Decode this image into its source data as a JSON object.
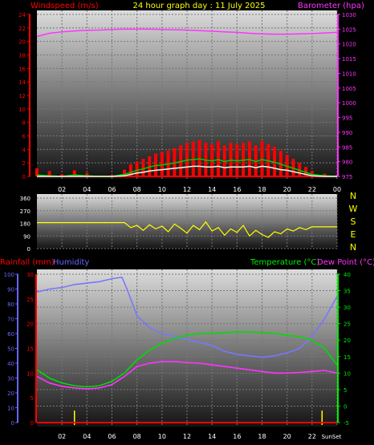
{
  "header": {
    "windspeed_label": "Windspeed (m/s)",
    "title": "24 hour graph day : 11 July 2025",
    "barometer_label": "Barometer (hpa)"
  },
  "footer": {
    "rainfall_label": "Rainfall (mm)",
    "humidity_label": "Humidity",
    "temperature_label": "Temperature (°C)",
    "dewpoint_label": "Dew Point (°C)",
    "sun_label": "SunSet"
  },
  "colors": {
    "wind_gust": "#ff0000",
    "wind_avg": "#00cc00",
    "wind_light": "#e6ffe6",
    "barometer": "#ff33ff",
    "direction": "#ffff00",
    "humidity": "#7777ff",
    "temperature": "#00dd00",
    "dewpoint": "#ff33ff",
    "rain": "#ff0000",
    "axis_label_red": "#ff0000",
    "axis_label_blue": "#6666ff",
    "axis_label_green": "#00ee00",
    "axis_label_magenta": "#ff33ff",
    "direction_labels": "#ffff00"
  },
  "chart_data": [
    {
      "type": "area",
      "title": "24 hour graph day : 11 July 2025",
      "x_ticks": [
        "02",
        "04",
        "06",
        "08",
        "10",
        "12",
        "14",
        "16",
        "18",
        "20",
        "22",
        "00"
      ],
      "xlim": [
        0,
        24
      ],
      "left_axis": {
        "label": "Windspeed (m/s)",
        "ylim": [
          0,
          24
        ],
        "ticks": [
          "0",
          "2",
          "4",
          "6",
          "8",
          "10",
          "12",
          "14",
          "16",
          "18",
          "20",
          "22",
          "24"
        ]
      },
      "right_axis": {
        "label": "Barometer (hpa)",
        "ylim": [
          975,
          1030
        ],
        "ticks": [
          "975",
          "980",
          "985",
          "990",
          "995",
          "1000",
          "1005",
          "1010",
          "1015",
          "1020",
          "1025",
          "1030"
        ]
      },
      "grid": true,
      "series": [
        {
          "name": "Barometer (hpa)",
          "axis": "right",
          "type": "line",
          "x": [
            0,
            1,
            2,
            3,
            4,
            5,
            6,
            7,
            8,
            9,
            10,
            11,
            12,
            13,
            14,
            15,
            16,
            17,
            18,
            19,
            20,
            21,
            22,
            23,
            24
          ],
          "values": [
            1022.5,
            1023.6,
            1024.1,
            1024.4,
            1024.6,
            1024.7,
            1024.9,
            1025.0,
            1025.0,
            1025.0,
            1024.9,
            1024.8,
            1024.7,
            1024.5,
            1024.3,
            1024.1,
            1023.9,
            1023.6,
            1023.4,
            1023.3,
            1023.3,
            1023.4,
            1023.5,
            1023.7,
            1023.9
          ]
        },
        {
          "axis": "left",
          "type": "bar",
          "x": [
            0,
            1,
            2,
            3,
            4,
            5,
            6,
            7,
            7.5,
            8,
            8.5,
            9,
            9.5,
            10,
            10.5,
            11,
            11.5,
            12,
            12.5,
            13,
            13.5,
            14,
            14.5,
            15,
            15.5,
            16,
            16.5,
            17,
            17.5,
            18,
            18.5,
            19,
            19.5,
            20,
            20.5,
            21,
            21.5,
            22,
            23,
            24
          ],
          "values": [
            1.2,
            0.8,
            0.3,
            0.9,
            0.5,
            0,
            0.2,
            1.0,
            1.8,
            2.2,
            2.6,
            3.0,
            3.4,
            3.6,
            3.8,
            4.2,
            4.6,
            5.0,
            5.2,
            5.4,
            5.0,
            4.8,
            5.2,
            4.6,
            5.0,
            4.8,
            5.0,
            5.2,
            4.6,
            5.2,
            4.8,
            4.4,
            3.8,
            3.2,
            2.6,
            2.0,
            1.4,
            0.8,
            0.4,
            0.2
          ]
        },
        {
          "axis": "left",
          "type": "line",
          "x": [
            0,
            1,
            2,
            3,
            4,
            5,
            6,
            7,
            7.5,
            8,
            8.5,
            9,
            9.5,
            10,
            10.5,
            11,
            11.5,
            12,
            12.5,
            13,
            13.5,
            14,
            14.5,
            15,
            15.5,
            16,
            16.5,
            17,
            17.5,
            18,
            18.5,
            19,
            19.5,
            20,
            20.5,
            21,
            21.5,
            22,
            23,
            24
          ],
          "values": [
            0.2,
            0.1,
            0,
            0.2,
            0.1,
            0,
            0,
            0.3,
            0.6,
            0.9,
            1.1,
            1.4,
            1.6,
            1.7,
            1.8,
            2.0,
            2.2,
            2.4,
            2.5,
            2.6,
            2.4,
            2.3,
            2.5,
            2.2,
            2.4,
            2.3,
            2.4,
            2.5,
            2.2,
            2.5,
            2.3,
            2.1,
            1.8,
            1.5,
            1.2,
            0.9,
            0.6,
            0.3,
            0.1,
            0
          ]
        },
        {
          "axis": "left",
          "type": "line",
          "x": [
            0,
            1,
            2,
            3,
            4,
            5,
            6,
            7,
            7.5,
            8,
            8.5,
            9,
            9.5,
            10,
            10.5,
            11,
            11.5,
            12,
            12.5,
            13,
            13.5,
            14,
            14.5,
            15,
            15.5,
            16,
            16.5,
            17,
            17.5,
            18,
            18.5,
            19,
            19.5,
            20,
            20.5,
            21,
            21.5,
            22,
            23,
            24
          ],
          "values": [
            0,
            0,
            0,
            0,
            0,
            0,
            0,
            0.1,
            0.3,
            0.5,
            0.6,
            0.8,
            0.9,
            1.0,
            1.1,
            1.2,
            1.3,
            1.4,
            1.5,
            1.5,
            1.4,
            1.4,
            1.5,
            1.3,
            1.4,
            1.4,
            1.4,
            1.5,
            1.3,
            1.5,
            1.4,
            1.2,
            1.0,
            0.9,
            0.7,
            0.5,
            0.3,
            0.1,
            0,
            0
          ]
        }
      ]
    },
    {
      "type": "line",
      "x_ticks": [],
      "xlim": [
        0,
        24
      ],
      "left_axis": {
        "ylim": [
          0,
          360
        ],
        "ticks": [
          "0",
          "90",
          "180",
          "270",
          "360"
        ]
      },
      "direction_labels": [
        "N",
        "W",
        "S",
        "E",
        "N"
      ],
      "grid": true,
      "series": [
        {
          "axis": "left",
          "x": [
            0,
            1,
            2,
            3,
            4,
            5,
            6,
            7,
            7.5,
            8,
            8.5,
            9,
            9.5,
            10,
            10.5,
            11,
            11.5,
            12,
            12.5,
            13,
            13.5,
            14,
            14.5,
            15,
            15.5,
            16,
            16.5,
            17,
            17.5,
            18,
            18.5,
            19,
            19.5,
            20,
            20.5,
            21,
            21.5,
            22,
            23,
            24
          ],
          "values": [
            185,
            185,
            185,
            185,
            185,
            185,
            185,
            185,
            150,
            165,
            130,
            170,
            140,
            160,
            120,
            175,
            145,
            110,
            165,
            135,
            190,
            125,
            150,
            95,
            140,
            115,
            165,
            90,
            130,
            100,
            80,
            120,
            105,
            140,
            125,
            150,
            135,
            155,
            155,
            155
          ]
        }
      ]
    },
    {
      "type": "line",
      "x_ticks": [
        "02",
        "04",
        "06",
        "08",
        "10",
        "12",
        "14",
        "16",
        "18",
        "20",
        "22",
        "Sun"
      ],
      "xlim": [
        0,
        24
      ],
      "left_axis_rain": {
        "label": "Rainfall (mm)",
        "ylim": [
          0,
          100
        ],
        "ticks": [
          "0",
          "10",
          "20",
          "30",
          "40",
          "50",
          "60",
          "70",
          "80",
          "90",
          "100"
        ]
      },
      "left_axis_humidity": {
        "label": "Humidity",
        "ylim": [
          0,
          30
        ],
        "ticks": [
          "0",
          "5",
          "10",
          "15",
          "20",
          "25",
          "30"
        ]
      },
      "right_axis": {
        "label": "Temperature (°C) / Dew Point (°C)",
        "ylim": [
          -5,
          40
        ],
        "ticks": [
          "-5",
          "0",
          "5",
          "10",
          "15",
          "20",
          "25",
          "30",
          "35",
          "40"
        ]
      },
      "grid": true,
      "series": [
        {
          "name": "Humidity",
          "axis": "rain",
          "x": [
            0,
            1,
            2,
            3,
            4,
            5,
            6,
            6.8,
            7.2,
            8,
            9,
            10,
            11,
            12,
            13,
            14,
            15,
            16,
            17,
            18,
            19,
            20,
            21,
            22,
            23,
            24
          ],
          "values": [
            88,
            90,
            91,
            93,
            94,
            95,
            97,
            98,
            90,
            72,
            64,
            60,
            58,
            56,
            54,
            52,
            48,
            46,
            45,
            44,
            45,
            47,
            50,
            58,
            70,
            85
          ]
        },
        {
          "name": "Temperature (°C)",
          "axis": "right",
          "x": [
            0,
            1,
            2,
            3,
            4,
            5,
            6,
            7,
            8,
            9,
            10,
            11,
            12,
            13,
            14,
            15,
            16,
            17,
            18,
            19,
            20,
            21,
            22,
            23,
            24
          ],
          "values": [
            11,
            8.5,
            7,
            6.2,
            5.8,
            6.2,
            7.5,
            10,
            14,
            17,
            19,
            20.5,
            21.5,
            22,
            22,
            22.3,
            22.5,
            22.5,
            22.3,
            22,
            21.5,
            21,
            20,
            17.5,
            12.5
          ]
        },
        {
          "name": "Dew Point (°C)",
          "axis": "right",
          "x": [
            0,
            1,
            2,
            3,
            4,
            5,
            6,
            7,
            8,
            9,
            10,
            11,
            12,
            13,
            14,
            15,
            16,
            17,
            18,
            19,
            20,
            21,
            22,
            23,
            24
          ],
          "values": [
            9,
            7,
            6,
            5.5,
            5.2,
            5.5,
            6.5,
            9,
            12,
            13,
            13.5,
            13.5,
            13.2,
            13,
            12.5,
            12,
            11.5,
            11,
            10.5,
            10,
            10,
            10.2,
            10.5,
            10.8,
            10
          ]
        },
        {
          "name": "Rainfall (mm)",
          "axis": "rain",
          "x": [
            0,
            24
          ],
          "values": [
            0,
            0
          ]
        }
      ],
      "sun_markers_x": [
        3,
        22.8
      ]
    }
  ]
}
